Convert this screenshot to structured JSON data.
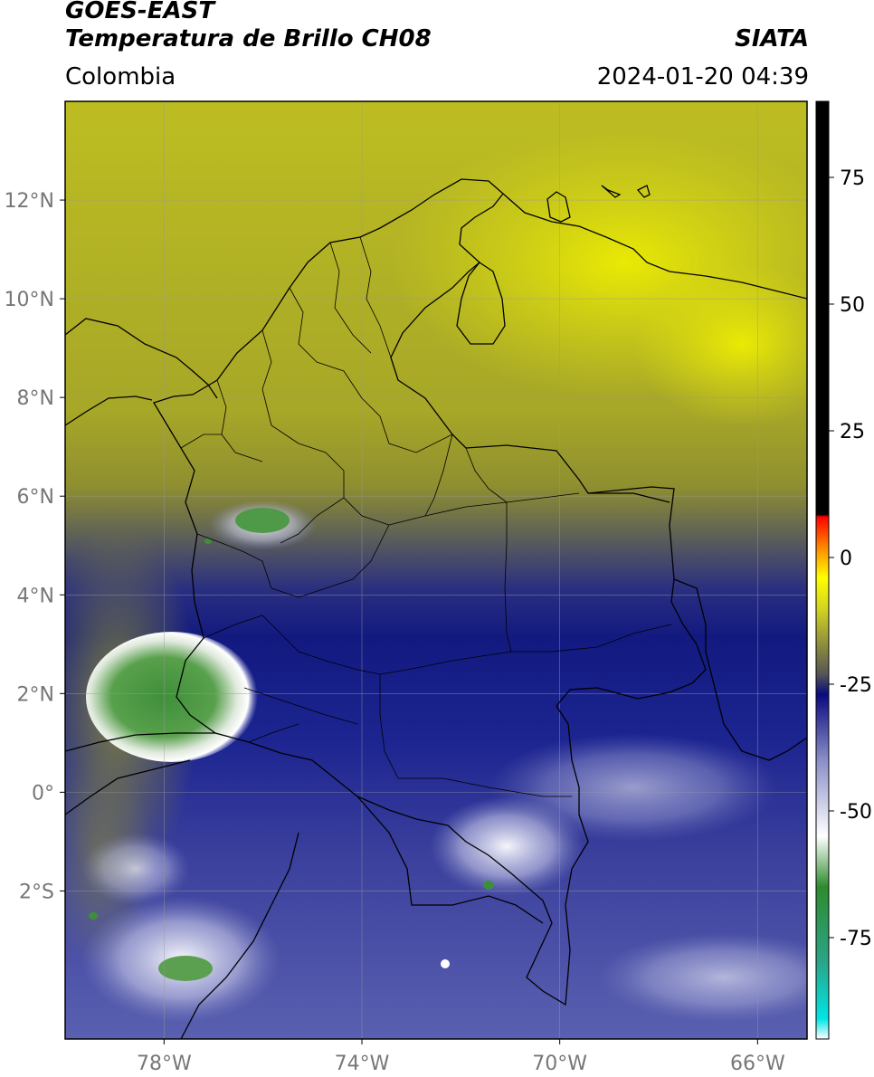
{
  "header": {
    "satellite": "GOES-EAST",
    "product": "Temperatura de Brillo CH08",
    "region": "Colombia",
    "agency": "SIATA",
    "datetime": "2024-01-20 04:39"
  },
  "map": {
    "lon_range": [
      -80.0,
      -65.0
    ],
    "lat_range": [
      -5.0,
      14.0
    ],
    "lon_ticks": [
      {
        "value": -78,
        "label": "78°W"
      },
      {
        "value": -74,
        "label": "74°W"
      },
      {
        "value": -70,
        "label": "70°W"
      },
      {
        "value": -66,
        "label": "66°W"
      }
    ],
    "lat_ticks": [
      {
        "value": 12,
        "label": "12°N"
      },
      {
        "value": 10,
        "label": "10°N"
      },
      {
        "value": 8,
        "label": "8°N"
      },
      {
        "value": 6,
        "label": "6°N"
      },
      {
        "value": 4,
        "label": "4°N"
      },
      {
        "value": 2,
        "label": "2°N"
      },
      {
        "value": 0,
        "label": "0°"
      },
      {
        "value": -2,
        "label": "2°S"
      }
    ],
    "gridlines": true
  },
  "colorbar": {
    "range": [
      -95,
      90
    ],
    "ticks": [
      {
        "value": 75,
        "label": "75"
      },
      {
        "value": 50,
        "label": "50"
      },
      {
        "value": 25,
        "label": "25"
      },
      {
        "value": 0,
        "label": "0"
      },
      {
        "value": -25,
        "label": "-25"
      },
      {
        "value": -50,
        "label": "-50"
      },
      {
        "value": -75,
        "label": "-75"
      }
    ],
    "stops": [
      {
        "value": -95,
        "color": "#ffffff"
      },
      {
        "value": -91,
        "color": "#00e5e5"
      },
      {
        "value": -80,
        "color": "#2aa58a"
      },
      {
        "value": -65,
        "color": "#2e8b2e"
      },
      {
        "value": -55,
        "color": "#ffffff"
      },
      {
        "value": -40,
        "color": "#8a8ec7"
      },
      {
        "value": -27,
        "color": "#0a0a80"
      },
      {
        "value": -23,
        "color": "#555555"
      },
      {
        "value": -10,
        "color": "#d4d422"
      },
      {
        "value": -4,
        "color": "#ffff00"
      },
      {
        "value": 2,
        "color": "#ff8800"
      },
      {
        "value": 8,
        "color": "#ff0000"
      },
      {
        "value": 8.5,
        "color": "#000000"
      },
      {
        "value": 90,
        "color": "#000000"
      }
    ]
  },
  "colors": {
    "cold_high": "#2e8b2e",
    "deep_convection": "#ffffff",
    "mid_cloud": "#1a1f8e",
    "dry_upper": "#c8c820",
    "very_dry": "#ffff00"
  }
}
